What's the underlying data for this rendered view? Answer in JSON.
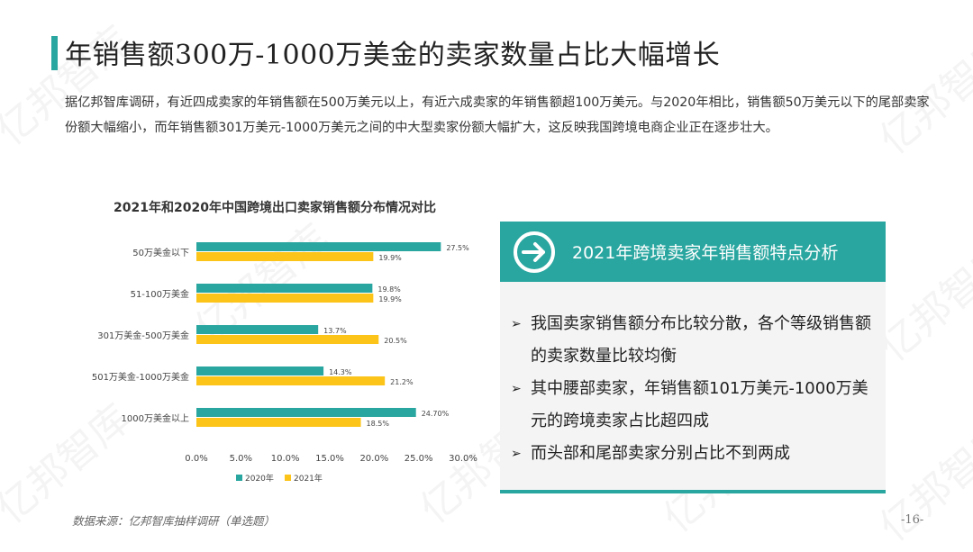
{
  "title": "年销售额300万-1000万美金的卖家数量占比大幅增长",
  "intro": "据亿邦智库调研，有近四成卖家的年销售额在500万美元以上，有近六成卖家的年销售额超100万美元。与2020年相比，销售额50万美元以下的尾部卖家份额大幅缩小，而年销售额301万美元-1000万美元之间的中大型卖家份额大幅扩大，这反映我国跨境电商企业正在逐步壮大。",
  "chart_data": {
    "type": "bar",
    "orientation": "horizontal",
    "title": "2021年和2020年中国跨境出口卖家销售额分布情况对比",
    "categories": [
      "50万美金以下",
      "51-100万美金",
      "301万美金-500万美金",
      "501万美金-1000万美金",
      "1000万美金以上"
    ],
    "series": [
      {
        "name": "2020年",
        "color": "#2aa6a0",
        "values": [
          27.5,
          19.8,
          13.7,
          14.3,
          24.7
        ],
        "labels": [
          "27.5%",
          "19.8%",
          "13.7%",
          "14.3%",
          "24.70%"
        ]
      },
      {
        "name": "2021年",
        "color": "#fcc419",
        "values": [
          19.9,
          19.9,
          20.5,
          21.2,
          18.5
        ],
        "labels": [
          "19.9%",
          "19.9%",
          "20.5%",
          "21.2%",
          "18.5%"
        ]
      }
    ],
    "xlim": [
      0,
      30
    ],
    "xticks": [
      "0.0%",
      "5.0%",
      "10.0%",
      "15.0%",
      "20.0%",
      "25.0%",
      "30.0%"
    ],
    "grid": false,
    "legend_position": "bottom"
  },
  "panel": {
    "title": "2021年跨境卖家年销售额特点分析",
    "icon": "arrow-right-circle-icon",
    "accent": "#2aa6a0",
    "bullet": "➢",
    "items": [
      "我国卖家销售额分布比较分散，各个等级销售额的卖家数量比较均衡",
      "其中腰部卖家，年销售额101万美元-1000万美元的跨境卖家占比超四成",
      "而头部和尾部卖家分别占比不到两成"
    ]
  },
  "source": "数据来源：亿邦智库抽样调研（单选题）",
  "page_number": "-16-",
  "watermark": "亿邦智库"
}
